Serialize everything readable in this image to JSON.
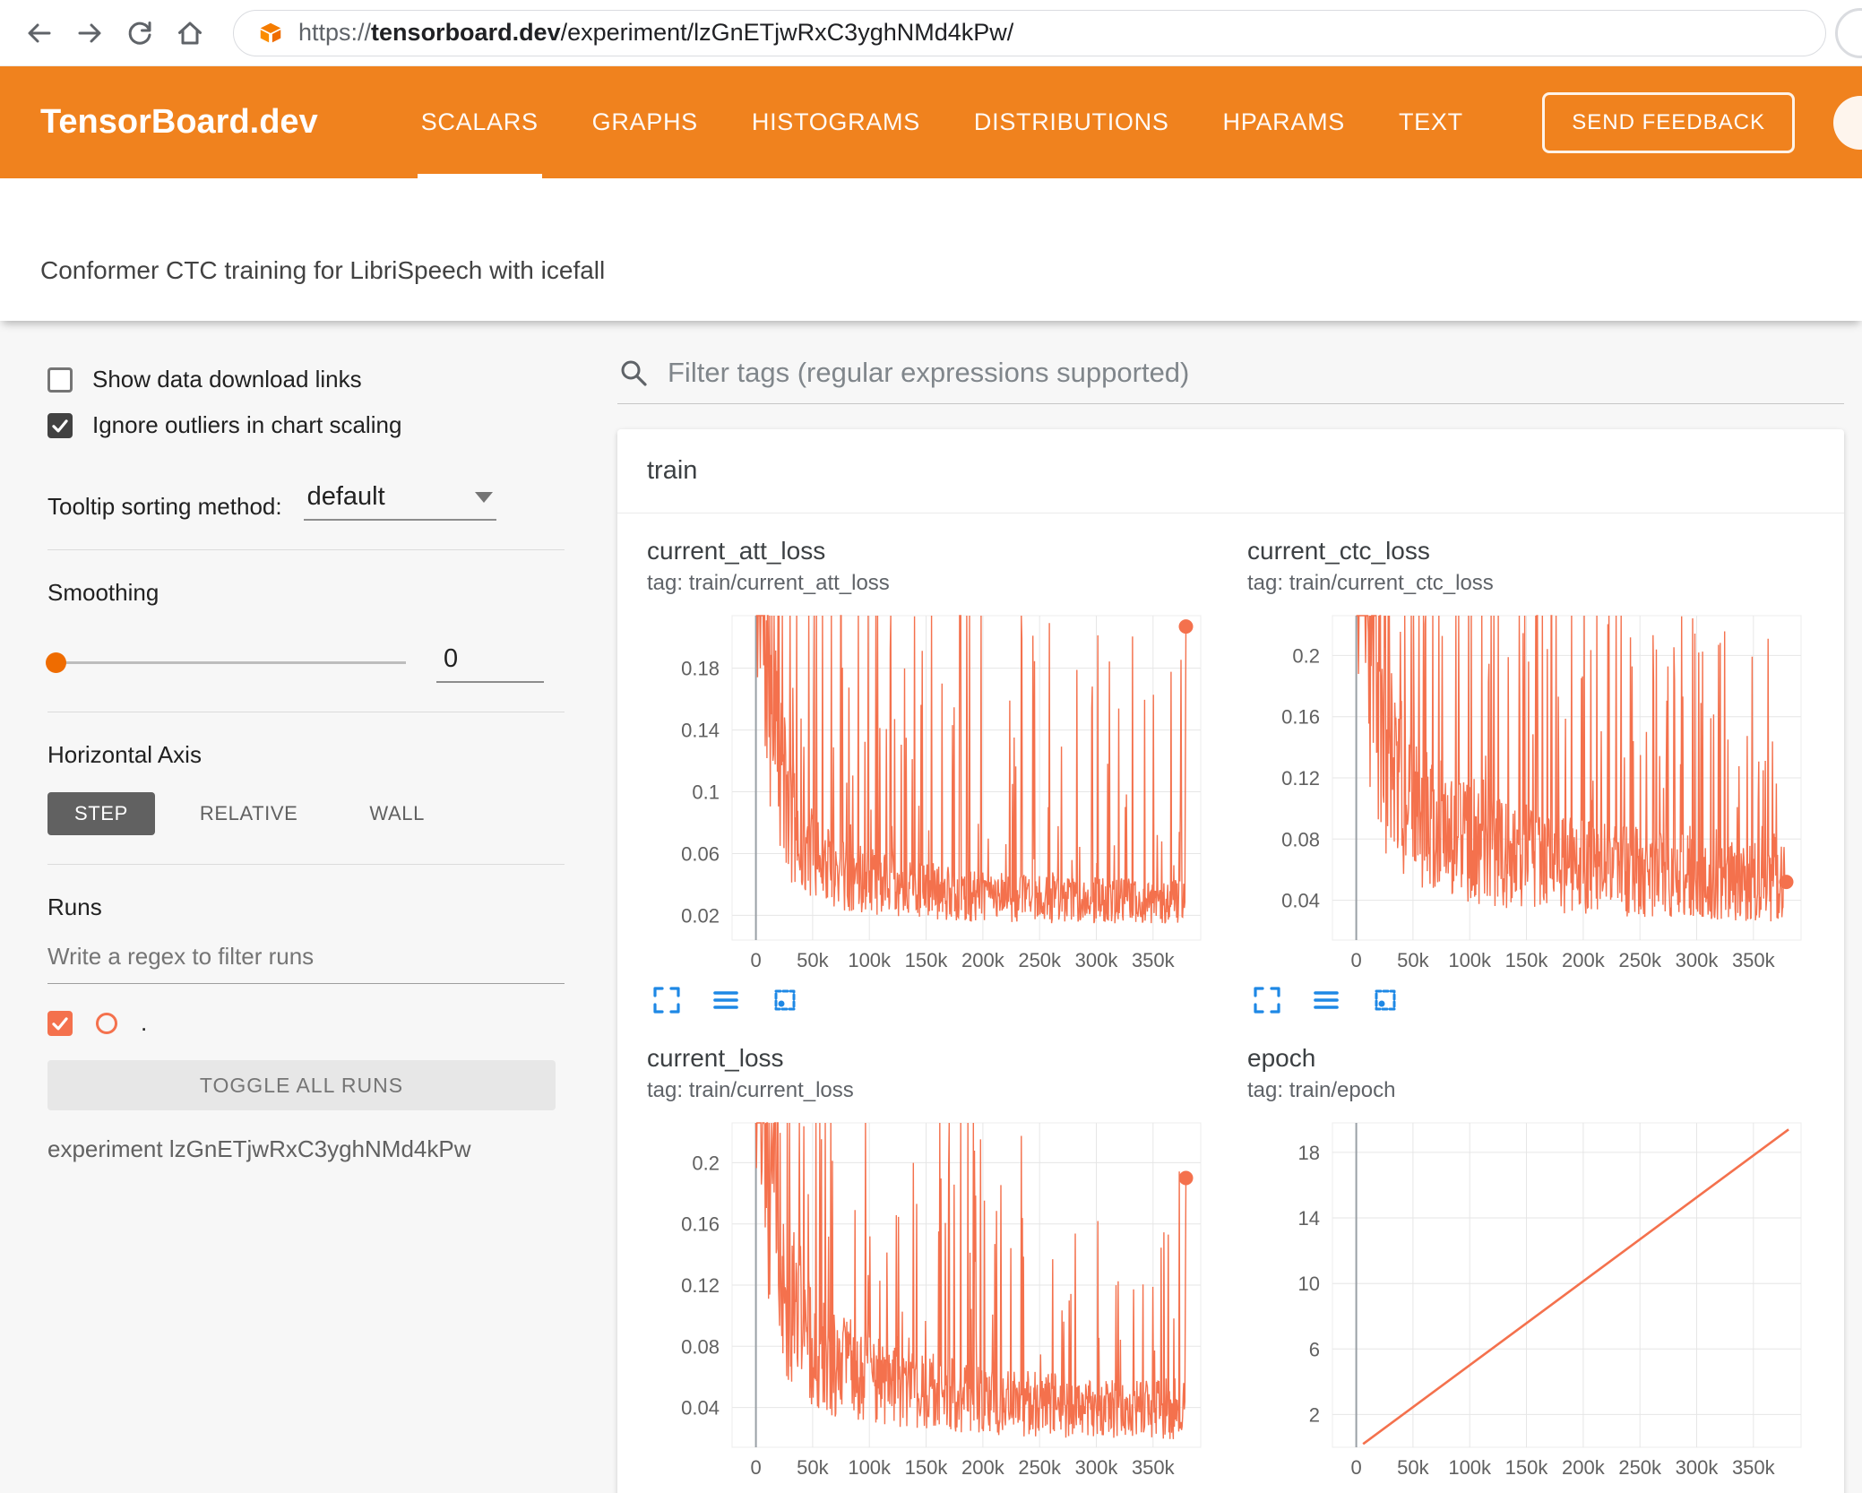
{
  "colors": {
    "header_orange": "#f0821e",
    "run_color": "#f4714d",
    "toolbar_blue": "#1e88e5"
  },
  "browser": {
    "url_scheme": "https://",
    "url_domain": "tensorboard.dev",
    "url_path": "/experiment/lzGnETjwRxC3yghNMd4kPw/"
  },
  "header": {
    "brand": "TensorBoard.dev",
    "tabs": [
      {
        "label": "SCALARS",
        "active": true
      },
      {
        "label": "GRAPHS",
        "active": false
      },
      {
        "label": "HISTOGRAMS",
        "active": false
      },
      {
        "label": "DISTRIBUTIONS",
        "active": false
      },
      {
        "label": "HPARAMS",
        "active": false
      },
      {
        "label": "TEXT",
        "active": false
      }
    ],
    "feedback_button": "SEND FEEDBACK",
    "subtitle": "Conformer CTC training for LibriSpeech with icefall"
  },
  "sidebar": {
    "checkboxes": [
      {
        "label": "Show data download links",
        "checked": false
      },
      {
        "label": "Ignore outliers in chart scaling",
        "checked": true
      }
    ],
    "tooltip_sorting": {
      "label": "Tooltip sorting method:",
      "value": "default"
    },
    "smoothing": {
      "label": "Smoothing",
      "value": "0"
    },
    "horizontal_axis": {
      "label": "Horizontal Axis",
      "options": [
        {
          "label": "STEP",
          "active": true
        },
        {
          "label": "RELATIVE",
          "active": false
        },
        {
          "label": "WALL",
          "active": false
        }
      ]
    },
    "runs": {
      "label": "Runs",
      "filter_placeholder": "Write a regex to filter runs",
      "run_item": {
        "name": ".",
        "checked": true
      },
      "toggle_button": "TOGGLE ALL RUNS",
      "caption": "experiment lzGnETjwRxC3yghNMd4kPw"
    }
  },
  "main": {
    "filter_placeholder": "Filter tags (regular expressions supported)",
    "card_title": "train"
  },
  "chart_data": [
    {
      "type": "line",
      "render": "noisy",
      "title": "current_att_loss",
      "tag": "tag: train/current_att_loss",
      "x_domain": [
        -21000,
        392000
      ],
      "x_tick_values": [
        0,
        50000,
        100000,
        150000,
        200000,
        250000,
        300000,
        350000
      ],
      "x_tick_labels": [
        "0",
        "50k",
        "100k",
        "150k",
        "200k",
        "250k",
        "300k",
        "350k"
      ],
      "y_domain": [
        0.004,
        0.214
      ],
      "y_tick_values": [
        0.02,
        0.06,
        0.1,
        0.14,
        0.18
      ],
      "y_tick_labels": [
        "0.02",
        "0.06",
        "0.1",
        "0.14",
        "0.18"
      ],
      "baseline": [
        [
          0,
          0.32
        ],
        [
          8000,
          0.2
        ],
        [
          20000,
          0.11
        ],
        [
          40000,
          0.062
        ],
        [
          80000,
          0.045
        ],
        [
          130000,
          0.037
        ],
        [
          200000,
          0.031
        ],
        [
          280000,
          0.029
        ],
        [
          378000,
          0.028
        ]
      ],
      "noise": {
        "seed": 11,
        "band": [
          0.5,
          1.55
        ],
        "spike_prob": 0.12,
        "spike_factor": [
          1.6,
          7.4
        ]
      },
      "points": 780,
      "x_end": 378000,
      "end_dot": {
        "x": 379000,
        "y": 0.207
      }
    },
    {
      "type": "line",
      "render": "noisy",
      "title": "current_ctc_loss",
      "tag": "tag: train/current_ctc_loss",
      "x_domain": [
        -21000,
        392000
      ],
      "x_tick_values": [
        0,
        50000,
        100000,
        150000,
        200000,
        250000,
        300000,
        350000
      ],
      "x_tick_labels": [
        "0",
        "50k",
        "100k",
        "150k",
        "200k",
        "250k",
        "300k",
        "350k"
      ],
      "y_domain": [
        0.014,
        0.226
      ],
      "y_tick_values": [
        0.04,
        0.08,
        0.12,
        0.16,
        0.2
      ],
      "y_tick_labels": [
        "0.04",
        "0.08",
        "0.12",
        "0.16",
        "0.2"
      ],
      "baseline": [
        [
          0,
          0.4
        ],
        [
          10000,
          0.24
        ],
        [
          25000,
          0.14
        ],
        [
          50000,
          0.095
        ],
        [
          100000,
          0.075
        ],
        [
          160000,
          0.065
        ],
        [
          230000,
          0.058
        ],
        [
          310000,
          0.053
        ],
        [
          378000,
          0.05
        ]
      ],
      "noise": {
        "seed": 23,
        "band": [
          0.5,
          1.55
        ],
        "spike_prob": 0.12,
        "spike_factor": [
          1.6,
          4.3
        ]
      },
      "points": 780,
      "x_end": 378000,
      "end_dot": {
        "x": 379000,
        "y": 0.052
      }
    },
    {
      "type": "line",
      "render": "noisy",
      "title": "current_loss",
      "tag": "tag: train/current_loss",
      "x_domain": [
        -21000,
        392000
      ],
      "x_tick_values": [
        0,
        50000,
        100000,
        150000,
        200000,
        250000,
        300000,
        350000
      ],
      "x_tick_labels": [
        "0",
        "50k",
        "100k",
        "150k",
        "200k",
        "250k",
        "300k",
        "350k"
      ],
      "y_domain": [
        0.014,
        0.226
      ],
      "y_tick_values": [
        0.04,
        0.08,
        0.12,
        0.16,
        0.2
      ],
      "y_tick_labels": [
        "0.04",
        "0.08",
        "0.12",
        "0.16",
        "0.2"
      ],
      "baseline": [
        [
          0,
          0.38
        ],
        [
          10000,
          0.22
        ],
        [
          25000,
          0.12
        ],
        [
          50000,
          0.075
        ],
        [
          100000,
          0.058
        ],
        [
          160000,
          0.048
        ],
        [
          230000,
          0.042
        ],
        [
          310000,
          0.039
        ],
        [
          378000,
          0.038
        ]
      ],
      "noise": {
        "seed": 37,
        "band": [
          0.5,
          1.55
        ],
        "spike_prob": 0.12,
        "spike_factor": [
          1.6,
          5.2
        ]
      },
      "points": 780,
      "x_end": 378000,
      "end_dot": {
        "x": 379000,
        "y": 0.19
      }
    },
    {
      "type": "line",
      "render": "series",
      "title": "epoch",
      "tag": "tag: train/epoch",
      "x_domain": [
        -21000,
        392000
      ],
      "x_tick_values": [
        0,
        50000,
        100000,
        150000,
        200000,
        250000,
        300000,
        350000
      ],
      "x_tick_labels": [
        "0",
        "50k",
        "100k",
        "150k",
        "200k",
        "250k",
        "300k",
        "350k"
      ],
      "y_domain": [
        0,
        19.8
      ],
      "y_tick_values": [
        2,
        6,
        10,
        14,
        18
      ],
      "y_tick_labels": [
        "2",
        "6",
        "10",
        "14",
        "18"
      ],
      "series": [
        [
          6000,
          0.2
        ],
        [
          381000,
          19.4
        ]
      ],
      "thick": true
    }
  ]
}
